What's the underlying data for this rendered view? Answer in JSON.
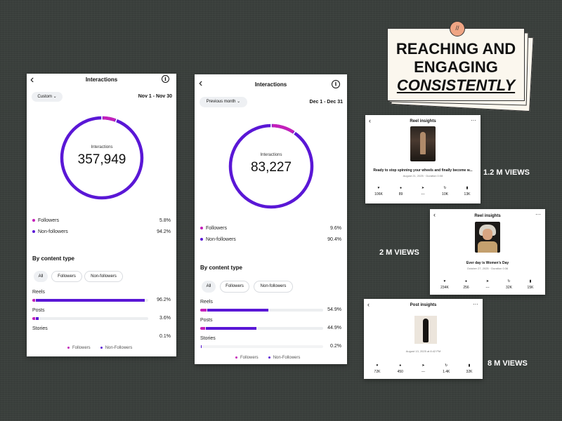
{
  "headline": {
    "line1": "REACHING AND",
    "line2": "ENGAGING",
    "line3": "CONSISTENTLY",
    "pin_glyph": "//"
  },
  "panel_a": {
    "title": "Interactions",
    "back_icon": "‹",
    "info_icon": "i",
    "filter_label": "Custom ⌄",
    "date_range": "Nov 1 - Nov 30",
    "ring_label": "Interactions",
    "ring_value": "357,949",
    "ring_followers_fraction": 0.058,
    "legend": [
      {
        "label": "Followers",
        "value": "5.8%"
      },
      {
        "label": "Non-followers",
        "value": "94.2%"
      }
    ],
    "section_title": "By content type",
    "tabs": [
      "All",
      "Followers",
      "Non-followers"
    ],
    "categories": [
      {
        "name": "Reels",
        "pct": "96.2%",
        "followers_fraction": 0.02,
        "nonfollowers_fraction": 0.942
      },
      {
        "name": "Posts",
        "pct": "3.6%",
        "followers_fraction": 0.012,
        "nonfollowers_fraction": 0.024
      },
      {
        "name": "Stories",
        "pct": "0.1%",
        "followers_fraction": 0.0,
        "nonfollowers_fraction": 0.001
      }
    ],
    "footer_legend": [
      "Followers",
      "Non-Followers"
    ]
  },
  "panel_b": {
    "title": "Interactions",
    "back_icon": "‹",
    "info_icon": "i",
    "filter_label": "Previous month ⌄",
    "date_range": "Dec 1 - Dec 31",
    "ring_label": "Interactions",
    "ring_value": "83,227",
    "ring_followers_fraction": 0.096,
    "legend": [
      {
        "label": "Followers",
        "value": "9.6%"
      },
      {
        "label": "Non-followers",
        "value": "90.4%"
      }
    ],
    "section_title": "By content type",
    "tabs": [
      "All",
      "Followers",
      "Non-followers"
    ],
    "categories": [
      {
        "name": "Reels",
        "pct": "54.9%",
        "followers_fraction": 0.05,
        "nonfollowers_fraction": 0.499
      },
      {
        "name": "Posts",
        "pct": "44.9%",
        "followers_fraction": 0.04,
        "nonfollowers_fraction": 0.409
      },
      {
        "name": "Stories",
        "pct": "0.2%",
        "followers_fraction": 0.0,
        "nonfollowers_fraction": 0.002
      }
    ],
    "footer_legend": [
      "Followers",
      "Non-Followers"
    ]
  },
  "card1": {
    "title": "Reel insights",
    "back_icon": "‹",
    "more_icon": "···",
    "caption": "Ready to stop spinning your wheels and finally become w...",
    "date": "August 21, 2025 · Duration 0:08",
    "metrics": [
      {
        "icon": "heart-icon",
        "value": "106K"
      },
      {
        "icon": "comment-icon",
        "value": "89"
      },
      {
        "icon": "share-icon",
        "value": "---"
      },
      {
        "icon": "repost-icon",
        "value": "10K"
      },
      {
        "icon": "bookmark-icon",
        "value": "13K"
      }
    ],
    "views_label": "1.2 M VIEWS"
  },
  "card2": {
    "title": "Reel insights",
    "back_icon": "‹",
    "more_icon": "···",
    "caption": "Ever day is Women's Day",
    "date": "October 27, 2025 · Duration 0:36",
    "metrics": [
      {
        "icon": "heart-icon",
        "value": "234K"
      },
      {
        "icon": "comment-icon",
        "value": "256"
      },
      {
        "icon": "share-icon",
        "value": "---"
      },
      {
        "icon": "repost-icon",
        "value": "32K"
      },
      {
        "icon": "bookmark-icon",
        "value": "15K"
      }
    ],
    "views_label": "2 M VIEWS"
  },
  "card3": {
    "title": "Post insights",
    "back_icon": "‹",
    "more_icon": "···",
    "date": "August 13, 2025 at 8:42 PM",
    "metrics": [
      {
        "icon": "heart-icon",
        "value": "72K"
      },
      {
        "icon": "comment-icon",
        "value": "450"
      },
      {
        "icon": "share-icon",
        "value": "---"
      },
      {
        "icon": "repost-icon",
        "value": "1.4K"
      },
      {
        "icon": "bookmark-icon",
        "value": "32K"
      }
    ],
    "views_label": "8 M VIEWS"
  },
  "colors": {
    "followers": "#c41fb9",
    "non_followers": "#5a17d6",
    "ring_track": "#ffffff"
  }
}
